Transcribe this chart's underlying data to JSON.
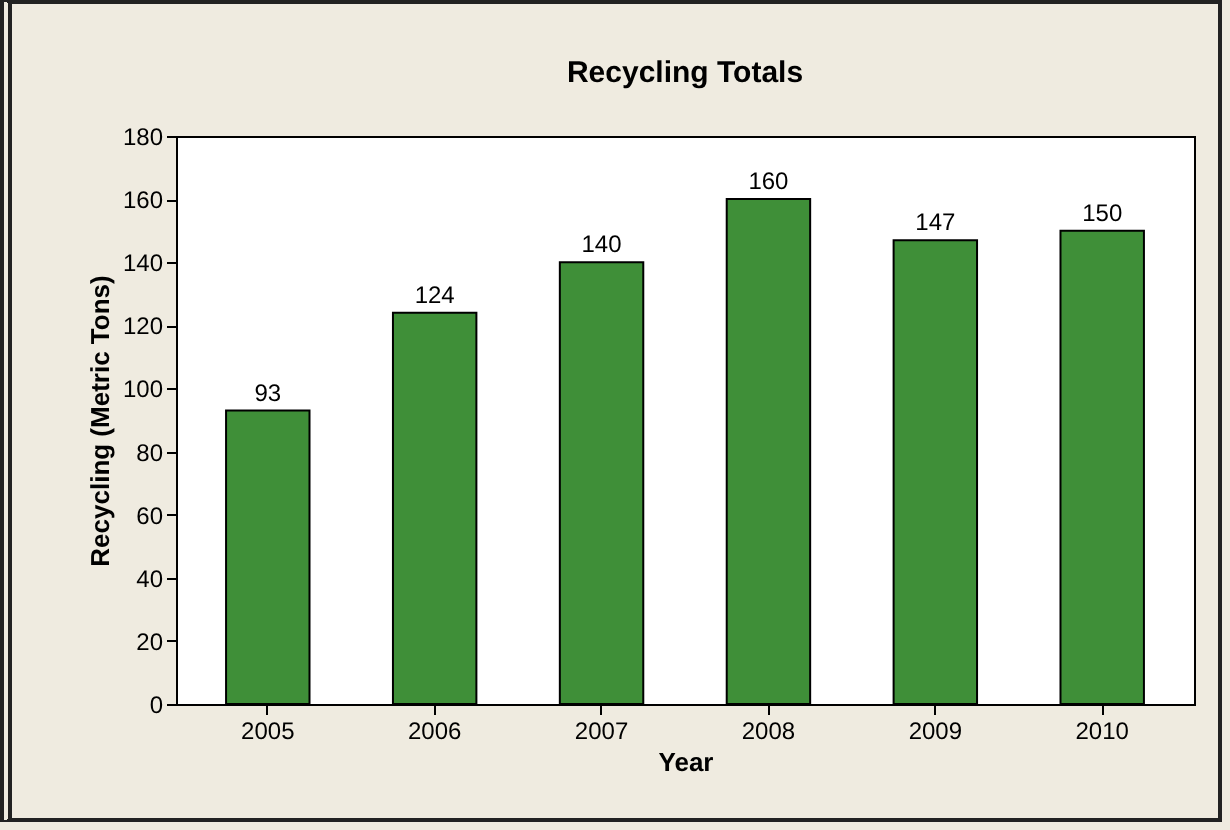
{
  "chart_data": {
    "type": "bar",
    "title": "Recycling Totals",
    "xlabel": "Year",
    "ylabel": "Recycling (Metric Tons)",
    "categories": [
      "2005",
      "2006",
      "2007",
      "2008",
      "2009",
      "2010"
    ],
    "values": [
      93,
      124,
      140,
      160,
      147,
      150
    ],
    "color": "#3f8f38",
    "ylim": [
      0,
      180
    ],
    "yticks": [
      0,
      20,
      40,
      60,
      80,
      100,
      120,
      140,
      160,
      180
    ],
    "data_labels": true,
    "grid": false
  }
}
